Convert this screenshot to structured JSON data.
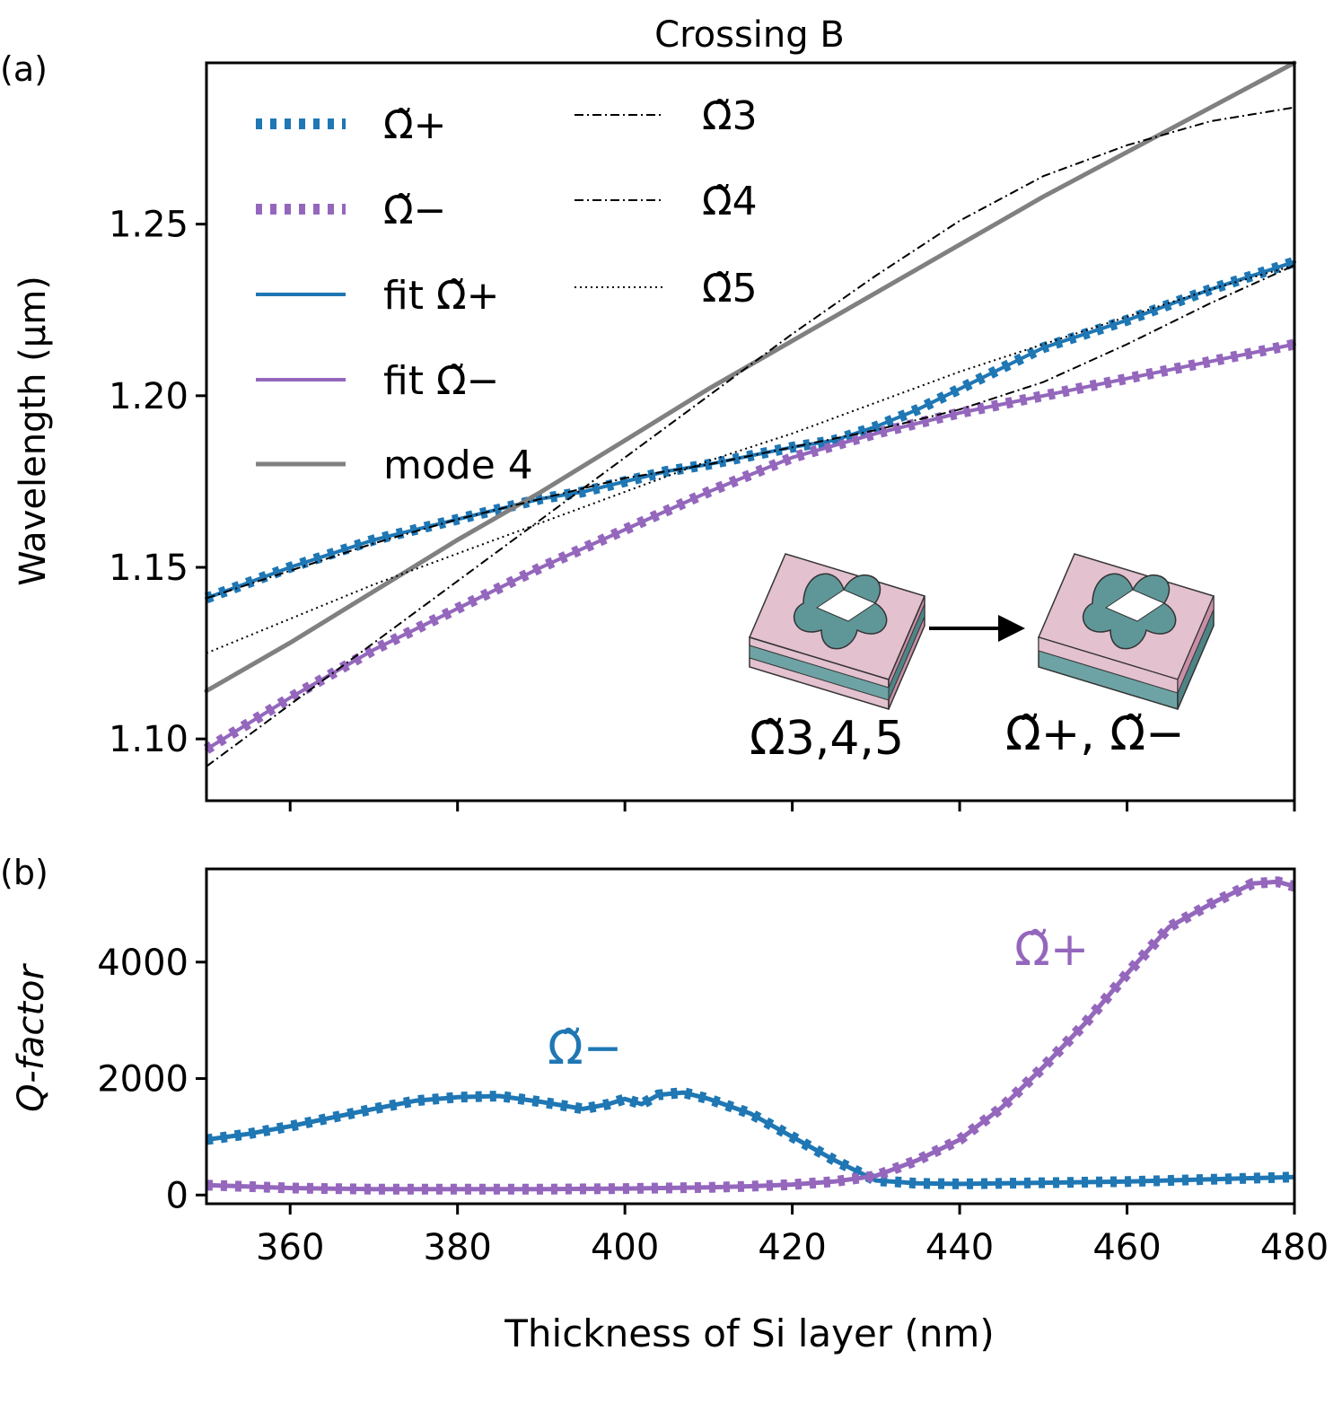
{
  "chart_data": [
    {
      "panel_label": "(a)",
      "type": "line",
      "title": "Crossing B",
      "xlabel": "",
      "ylabel": "Wavelength (μm)",
      "xlim": [
        350,
        480
      ],
      "ylim": [
        1.082,
        1.297
      ],
      "xticks": [
        360,
        380,
        400,
        420,
        440,
        460,
        480
      ],
      "yticks": [
        "1.10",
        "1.15",
        "1.20",
        "1.25"
      ],
      "grid": false,
      "legend_position": "top-left",
      "colors": {
        "plus": "#1f77b4",
        "minus": "#9467bd",
        "mode4": "#808080",
        "black": "#000000"
      },
      "series": [
        {
          "name": "Ω̃+",
          "style": "dotted-thick",
          "color": "#1f77b4",
          "x": [
            350,
            360,
            370,
            380,
            390,
            395,
            400,
            405,
            410,
            420,
            425,
            430,
            435,
            440,
            450,
            460,
            470,
            480
          ],
          "y": [
            1.141,
            1.15,
            1.158,
            1.164,
            1.17,
            1.172,
            1.175,
            1.178,
            1.18,
            1.185,
            1.187,
            1.191,
            1.196,
            1.202,
            1.214,
            1.222,
            1.231,
            1.239
          ]
        },
        {
          "name": "Ω̃−",
          "style": "dotted-thick",
          "color": "#9467bd",
          "x": [
            350,
            360,
            370,
            380,
            390,
            400,
            410,
            420,
            430,
            440,
            450,
            460,
            470,
            480
          ],
          "y": [
            1.097,
            1.112,
            1.126,
            1.138,
            1.15,
            1.161,
            1.172,
            1.182,
            1.189,
            1.195,
            1.2,
            1.205,
            1.21,
            1.215
          ]
        },
        {
          "name": "fit Ω̃+",
          "style": "solid",
          "color": "#1f77b4",
          "x": [
            350,
            360,
            370,
            380,
            390,
            395,
            400,
            405,
            410,
            420,
            425,
            430,
            435,
            440,
            450,
            460,
            470,
            480
          ],
          "y": [
            1.141,
            1.15,
            1.158,
            1.164,
            1.17,
            1.172,
            1.175,
            1.178,
            1.18,
            1.185,
            1.187,
            1.191,
            1.196,
            1.202,
            1.214,
            1.222,
            1.231,
            1.239
          ]
        },
        {
          "name": "fit Ω̃−",
          "style": "solid",
          "color": "#9467bd",
          "x": [
            350,
            360,
            370,
            380,
            390,
            400,
            410,
            420,
            430,
            440,
            450,
            460,
            470,
            480
          ],
          "y": [
            1.097,
            1.112,
            1.126,
            1.138,
            1.15,
            1.161,
            1.172,
            1.182,
            1.189,
            1.195,
            1.2,
            1.205,
            1.21,
            1.215
          ]
        },
        {
          "name": "mode 4",
          "style": "solid-thick",
          "color": "#808080",
          "x": [
            350,
            360,
            370,
            380,
            390,
            400,
            410,
            420,
            430,
            440,
            450,
            460,
            470,
            480
          ],
          "y": [
            1.114,
            1.128,
            1.143,
            1.158,
            1.172,
            1.187,
            1.202,
            1.216,
            1.23,
            1.244,
            1.258,
            1.271,
            1.284,
            1.297
          ]
        },
        {
          "name": "Ω̃3",
          "style": "dashdot",
          "color": "#000000",
          "x": [
            350,
            360,
            370,
            380,
            390,
            395,
            400,
            405,
            410,
            420,
            430,
            440,
            450,
            460,
            470,
            480
          ],
          "y": [
            1.141,
            1.149,
            1.157,
            1.164,
            1.17,
            1.173,
            1.176,
            1.178,
            1.18,
            1.185,
            1.19,
            1.196,
            1.204,
            1.215,
            1.227,
            1.238
          ]
        },
        {
          "name": "Ω̃4",
          "style": "dashdot",
          "color": "#000000",
          "x": [
            350,
            360,
            370,
            380,
            390,
            400,
            410,
            420,
            430,
            440,
            450,
            460,
            470,
            480
          ],
          "y": [
            1.092,
            1.11,
            1.128,
            1.146,
            1.164,
            1.182,
            1.2,
            1.218,
            1.235,
            1.251,
            1.264,
            1.273,
            1.28,
            1.284
          ]
        },
        {
          "name": "Ω̃5",
          "style": "dotted-thin",
          "color": "#000000",
          "x": [
            350,
            360,
            370,
            380,
            390,
            400,
            410,
            420,
            430,
            440,
            450,
            460,
            470,
            480
          ],
          "y": [
            1.125,
            1.135,
            1.145,
            1.154,
            1.163,
            1.172,
            1.181,
            1.189,
            1.198,
            1.207,
            1.215,
            1.223,
            1.231,
            1.238
          ]
        }
      ],
      "annotations": [
        "Ω̃3,4,5",
        "Ω̃+, Ω̃−"
      ]
    },
    {
      "panel_label": "(b)",
      "type": "line",
      "title": "",
      "xlabel": "Thickness of Si layer (nm)",
      "ylabel": "Q-factor",
      "xlim": [
        350,
        480
      ],
      "ylim": [
        -150,
        5600
      ],
      "xticks": [
        360,
        380,
        400,
        420,
        440,
        460,
        480
      ],
      "yticks": [
        0,
        2000,
        4000
      ],
      "grid": false,
      "series": [
        {
          "name": "Ω̃−",
          "color": "#1f77b4",
          "x": [
            350,
            355,
            360,
            365,
            370,
            375,
            380,
            385,
            390,
            395,
            398,
            400,
            402,
            404,
            407,
            410,
            415,
            420,
            425,
            430,
            435,
            440,
            450,
            460,
            470,
            480
          ],
          "y": [
            950,
            1050,
            1180,
            1330,
            1480,
            1620,
            1680,
            1700,
            1600,
            1480,
            1560,
            1650,
            1560,
            1720,
            1760,
            1650,
            1400,
            1000,
            600,
            250,
            200,
            190,
            210,
            230,
            270,
            310
          ]
        },
        {
          "name": "Ω̃+",
          "color": "#9467bd",
          "x": [
            350,
            360,
            370,
            380,
            390,
            400,
            410,
            415,
            420,
            425,
            430,
            435,
            440,
            445,
            450,
            455,
            460,
            465,
            470,
            475,
            478,
            480
          ],
          "y": [
            170,
            120,
            100,
            100,
            100,
            110,
            130,
            150,
            180,
            230,
            330,
            600,
            950,
            1500,
            2200,
            2950,
            3800,
            4600,
            5000,
            5350,
            5380,
            5300
          ]
        }
      ],
      "annotations": [
        "Ω̃−",
        "Ω̃+"
      ]
    }
  ]
}
